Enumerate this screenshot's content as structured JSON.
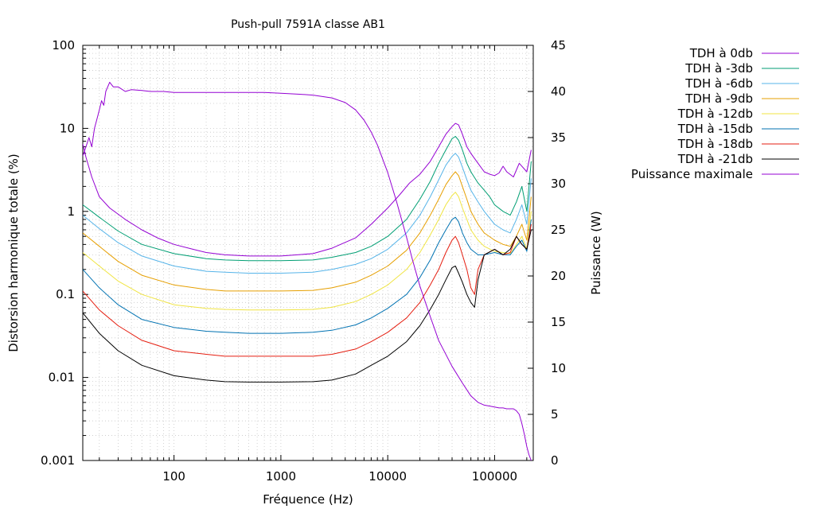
{
  "chart_data": {
    "type": "line",
    "title": "Push-pull 7591A classe AB1",
    "xlabel": "Fréquence (Hz)",
    "ylabel": "Distorsion harmonique totale (%)",
    "y2label": "Puissance (W)",
    "x_scale": "log",
    "y_scale": "log",
    "xlim": [
      14,
      230000
    ],
    "ylim": [
      0.001,
      100
    ],
    "y2lim": [
      0,
      45
    ],
    "grid": true,
    "legend_position": "right",
    "x_ticks": [
      {
        "value": 100,
        "label": "100"
      },
      {
        "value": 1000,
        "label": "1000"
      },
      {
        "value": 10000,
        "label": "10000"
      },
      {
        "value": 100000,
        "label": "100000"
      }
    ],
    "y_ticks": [
      {
        "value": 100,
        "label": "100"
      },
      {
        "value": 10,
        "label": "10"
      },
      {
        "value": 1,
        "label": "1"
      },
      {
        "value": 0.1,
        "label": "0.1"
      },
      {
        "value": 0.01,
        "label": "0.01"
      },
      {
        "value": 0.001,
        "label": "0.001"
      }
    ],
    "y2_ticks": [
      {
        "value": 45,
        "label": "45"
      },
      {
        "value": 40,
        "label": "40"
      },
      {
        "value": 35,
        "label": "35"
      },
      {
        "value": 30,
        "label": "30"
      },
      {
        "value": 25,
        "label": "25"
      },
      {
        "value": 20,
        "label": "20"
      },
      {
        "value": 15,
        "label": "15"
      },
      {
        "value": 10,
        "label": "10"
      },
      {
        "value": 5,
        "label": "5"
      },
      {
        "value": 0,
        "label": "0"
      }
    ],
    "series": [
      {
        "name": "TDH à 0db",
        "color": "#9400d3",
        "axis": "y",
        "x": [
          14,
          15,
          17,
          20,
          25,
          35,
          50,
          70,
          100,
          150,
          200,
          300,
          500,
          1000,
          2000,
          3000,
          5000,
          7000,
          10000,
          13000,
          16000,
          20000,
          25000,
          30000,
          35000,
          40000,
          43000,
          46000,
          50000,
          55000,
          60000,
          70000,
          80000,
          90000,
          100000,
          110000,
          120000,
          130000,
          150000,
          170000,
          200000,
          220000
        ],
        "values": [
          6.5,
          4.5,
          2.6,
          1.5,
          1.1,
          0.8,
          0.6,
          0.48,
          0.4,
          0.35,
          0.32,
          0.3,
          0.29,
          0.29,
          0.31,
          0.36,
          0.48,
          0.7,
          1.1,
          1.6,
          2.2,
          2.8,
          4.0,
          6.0,
          8.5,
          10.5,
          11.5,
          11,
          8.5,
          6.0,
          5.0,
          3.8,
          3.0,
          2.8,
          2.7,
          2.9,
          3.5,
          3.0,
          2.6,
          3.8,
          3.0,
          5.5
        ]
      },
      {
        "name": "TDH à -3db",
        "color": "#009e73",
        "axis": "y",
        "x": [
          14,
          20,
          30,
          50,
          100,
          200,
          300,
          500,
          1000,
          2000,
          3000,
          5000,
          7000,
          10000,
          15000,
          20000,
          25000,
          30000,
          35000,
          40000,
          43000,
          46000,
          50000,
          55000,
          60000,
          70000,
          80000,
          90000,
          100000,
          120000,
          140000,
          160000,
          180000,
          200000,
          220000
        ],
        "values": [
          1.2,
          0.85,
          0.58,
          0.4,
          0.31,
          0.27,
          0.26,
          0.255,
          0.255,
          0.26,
          0.28,
          0.32,
          0.38,
          0.5,
          0.8,
          1.4,
          2.3,
          3.8,
          5.5,
          7.5,
          8.0,
          7.2,
          5.5,
          3.8,
          3.0,
          2.2,
          1.8,
          1.5,
          1.2,
          1.0,
          0.9,
          1.3,
          2.0,
          1.0,
          4.0
        ]
      },
      {
        "name": "TDH à -6db",
        "color": "#56b4e9",
        "axis": "y",
        "x": [
          14,
          20,
          30,
          50,
          100,
          200,
          300,
          500,
          1000,
          2000,
          3000,
          5000,
          7000,
          10000,
          15000,
          20000,
          25000,
          30000,
          35000,
          40000,
          43000,
          46000,
          50000,
          55000,
          60000,
          70000,
          80000,
          100000,
          120000,
          140000,
          160000,
          180000,
          200000,
          220000
        ],
        "values": [
          0.9,
          0.62,
          0.42,
          0.29,
          0.22,
          0.19,
          0.185,
          0.18,
          0.18,
          0.185,
          0.2,
          0.23,
          0.27,
          0.35,
          0.55,
          0.9,
          1.5,
          2.4,
          3.6,
          4.6,
          5.0,
          4.5,
          3.4,
          2.4,
          1.8,
          1.3,
          1.0,
          0.7,
          0.6,
          0.55,
          0.8,
          1.2,
          0.7,
          2.5
        ]
      },
      {
        "name": "TDH à -9db",
        "color": "#e69f00",
        "axis": "y",
        "x": [
          14,
          20,
          30,
          50,
          100,
          200,
          300,
          500,
          1000,
          2000,
          3000,
          5000,
          7000,
          10000,
          15000,
          20000,
          25000,
          30000,
          35000,
          40000,
          43000,
          46000,
          50000,
          55000,
          60000,
          70000,
          80000,
          100000,
          120000,
          140000,
          160000,
          180000,
          200000,
          220000
        ],
        "values": [
          0.55,
          0.38,
          0.25,
          0.17,
          0.13,
          0.115,
          0.11,
          0.11,
          0.11,
          0.112,
          0.12,
          0.14,
          0.17,
          0.22,
          0.34,
          0.55,
          0.9,
          1.4,
          2.1,
          2.7,
          3.0,
          2.7,
          2.0,
          1.4,
          1.0,
          0.7,
          0.55,
          0.45,
          0.4,
          0.38,
          0.5,
          0.7,
          0.45,
          1.5
        ]
      },
      {
        "name": "TDH à -12db",
        "color": "#f0e442",
        "axis": "y",
        "x": [
          14,
          20,
          30,
          50,
          100,
          200,
          300,
          500,
          1000,
          2000,
          3000,
          5000,
          7000,
          10000,
          15000,
          20000,
          25000,
          30000,
          35000,
          40000,
          43000,
          46000,
          50000,
          55000,
          60000,
          70000,
          80000,
          100000,
          120000,
          140000,
          160000,
          180000,
          200000,
          220000
        ],
        "values": [
          0.32,
          0.22,
          0.145,
          0.1,
          0.075,
          0.068,
          0.066,
          0.065,
          0.065,
          0.066,
          0.07,
          0.082,
          0.1,
          0.13,
          0.2,
          0.32,
          0.52,
          0.8,
          1.2,
          1.55,
          1.7,
          1.5,
          1.1,
          0.8,
          0.6,
          0.45,
          0.38,
          0.33,
          0.32,
          0.31,
          0.4,
          0.5,
          0.35,
          1.0
        ]
      },
      {
        "name": "TDH à -15db",
        "color": "#0072b2",
        "axis": "y",
        "x": [
          14,
          20,
          30,
          50,
          100,
          200,
          300,
          500,
          1000,
          2000,
          3000,
          5000,
          7000,
          10000,
          15000,
          20000,
          25000,
          30000,
          35000,
          40000,
          43000,
          46000,
          50000,
          55000,
          60000,
          70000,
          80000,
          100000,
          120000,
          140000,
          160000,
          180000,
          200000,
          220000
        ],
        "values": [
          0.2,
          0.12,
          0.075,
          0.05,
          0.04,
          0.036,
          0.035,
          0.034,
          0.034,
          0.035,
          0.037,
          0.043,
          0.052,
          0.068,
          0.1,
          0.16,
          0.26,
          0.42,
          0.6,
          0.8,
          0.85,
          0.75,
          0.55,
          0.42,
          0.35,
          0.3,
          0.3,
          0.32,
          0.3,
          0.3,
          0.38,
          0.45,
          0.33,
          0.8
        ]
      },
      {
        "name": "TDH à -18db",
        "color": "#e51e10",
        "axis": "y",
        "x": [
          14,
          20,
          30,
          50,
          100,
          200,
          300,
          500,
          1000,
          2000,
          3000,
          5000,
          7000,
          10000,
          15000,
          20000,
          25000,
          30000,
          35000,
          40000,
          43000,
          46000,
          50000,
          55000,
          60000,
          65000,
          70000,
          80000,
          100000,
          120000,
          140000,
          160000,
          180000,
          200000,
          220000
        ],
        "values": [
          0.11,
          0.065,
          0.042,
          0.028,
          0.021,
          0.019,
          0.018,
          0.018,
          0.018,
          0.018,
          0.019,
          0.022,
          0.027,
          0.035,
          0.052,
          0.08,
          0.13,
          0.2,
          0.32,
          0.45,
          0.5,
          0.42,
          0.3,
          0.2,
          0.12,
          0.1,
          0.2,
          0.3,
          0.35,
          0.3,
          0.32,
          0.5,
          0.4,
          0.35,
          0.7
        ]
      },
      {
        "name": "TDH à -21db",
        "color": "#000000",
        "axis": "y",
        "x": [
          14,
          20,
          30,
          50,
          100,
          200,
          300,
          500,
          1000,
          2000,
          3000,
          5000,
          7000,
          10000,
          15000,
          20000,
          25000,
          30000,
          35000,
          40000,
          43000,
          46000,
          50000,
          55000,
          60000,
          65000,
          70000,
          80000,
          100000,
          120000,
          140000,
          160000,
          180000,
          200000,
          220000
        ],
        "values": [
          0.06,
          0.034,
          0.021,
          0.014,
          0.0105,
          0.0093,
          0.0089,
          0.0088,
          0.0088,
          0.0089,
          0.0093,
          0.011,
          0.014,
          0.018,
          0.027,
          0.042,
          0.066,
          0.1,
          0.15,
          0.21,
          0.22,
          0.18,
          0.14,
          0.1,
          0.08,
          0.07,
          0.15,
          0.3,
          0.35,
          0.3,
          0.35,
          0.5,
          0.4,
          0.35,
          0.6
        ]
      },
      {
        "name": "Puissance maximale",
        "color": "#9400d3",
        "axis": "y2",
        "x": [
          14,
          15,
          16,
          17,
          18,
          19,
          20,
          21,
          22,
          23,
          25,
          27,
          30,
          35,
          40,
          50,
          60,
          80,
          100,
          150,
          200,
          300,
          500,
          700,
          1000,
          1500,
          2000,
          3000,
          4000,
          5000,
          6000,
          7000,
          8000,
          10000,
          12000,
          15000,
          17000,
          20000,
          25000,
          30000,
          40000,
          50000,
          60000,
          70000,
          80000,
          90000,
          100000,
          110000,
          120000,
          130000,
          140000,
          150000,
          160000,
          170000,
          180000,
          190000,
          200000,
          210000,
          220000
        ],
        "values": [
          33,
          34,
          35,
          34,
          36,
          37,
          38,
          39,
          38.5,
          40,
          41,
          40.5,
          40.5,
          40,
          40.2,
          40.1,
          40,
          40,
          39.9,
          39.9,
          39.9,
          39.9,
          39.9,
          39.9,
          39.8,
          39.7,
          39.6,
          39.3,
          38.8,
          38,
          36.9,
          35.6,
          34.2,
          31.2,
          28.2,
          24.2,
          21.8,
          18.9,
          15.6,
          13.0,
          10.2,
          8.4,
          7.0,
          6.3,
          6.0,
          5.9,
          5.8,
          5.7,
          5.7,
          5.6,
          5.6,
          5.6,
          5.4,
          5.0,
          4.0,
          2.8,
          1.5,
          0.6,
          0
        ]
      }
    ]
  }
}
